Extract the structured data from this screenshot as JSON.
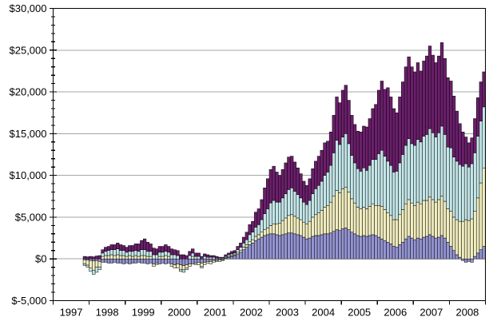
{
  "chart_data": {
    "type": "bar",
    "stacked": true,
    "title": "",
    "xlabel": "",
    "ylabel": "",
    "legend": "none",
    "grid": "horizontal-major-gridlines",
    "x_axis": {
      "tick_labels": [
        "1997",
        "1998",
        "1999",
        "2000",
        "2001",
        "2002",
        "2003",
        "2004",
        "2005",
        "2006",
        "2007",
        "2008"
      ],
      "start_year": 1997,
      "end_year_exclusive": 2009,
      "bar_period": "monthly",
      "first_bar": "1997-11",
      "last_bar": "2008-12"
    },
    "y_axis": {
      "min": -5000,
      "max": 30000,
      "major_step": 5000,
      "minor_step": 1000,
      "tick_labels": [
        "$30,000",
        "$25,000",
        "$20,000",
        "$15,000",
        "$10,000",
        "$5,000",
        "$0",
        "$-5,000"
      ]
    },
    "colors": {
      "axis": "#000000",
      "gridline": "#A6A6A6",
      "bar_outline": "#000000",
      "background": "#FFFFFF"
    },
    "series": [
      {
        "name": "series-1-periwinkle",
        "color": "#9494D3",
        "values": [
          -100,
          -150,
          -200,
          -250,
          -200,
          -300,
          -400,
          -400,
          -500,
          -500,
          -400,
          -500,
          -500,
          -600,
          -500,
          -600,
          -500,
          -500,
          -400,
          -500,
          -500,
          -600,
          -500,
          -600,
          -500,
          -600,
          -500,
          -600,
          -500,
          -600,
          -700,
          -600,
          -700,
          -800,
          -700,
          -600,
          -600,
          -500,
          -400,
          -500,
          -400,
          -300,
          -300,
          -200,
          -200,
          -100,
          -100,
          100,
          200,
          300,
          400,
          600,
          800,
          1100,
          1400,
          1700,
          1900,
          2200,
          2400,
          2600,
          2800,
          2900,
          3000,
          3000,
          2900,
          2800,
          2900,
          3000,
          3100,
          3100,
          3000,
          2900,
          2800,
          2600,
          2400,
          2500,
          2700,
          2800,
          2800,
          2900,
          3000,
          3000,
          3100,
          3300,
          3500,
          3400,
          3600,
          3700,
          3500,
          3200,
          3000,
          2800,
          2700,
          2800,
          2700,
          2800,
          2900,
          2800,
          2600,
          2400,
          2200,
          2000,
          1800,
          1500,
          1400,
          1700,
          2000,
          2400,
          2700,
          2500,
          2300,
          2500,
          2400,
          2600,
          2700,
          2900,
          2700,
          2500,
          2600,
          2800,
          2500,
          2000,
          1500,
          1000,
          500,
          200,
          -200,
          -400,
          -300,
          -400,
          300,
          700,
          1100,
          1500
        ]
      },
      {
        "name": "series-2-pale-yellow",
        "color": "#F0ECBE",
        "values": [
          -500,
          -600,
          -900,
          -1100,
          -800,
          -700,
          300,
          400,
          400,
          500,
          400,
          500,
          400,
          400,
          300,
          400,
          300,
          400,
          300,
          400,
          400,
          300,
          300,
          -300,
          -200,
          300,
          300,
          400,
          300,
          -300,
          -400,
          -500,
          -600,
          -500,
          -400,
          -300,
          300,
          -200,
          -300,
          -400,
          -300,
          -200,
          -300,
          -200,
          -100,
          -200,
          -100,
          100,
          100,
          100,
          100,
          200,
          200,
          300,
          300,
          400,
          400,
          500,
          500,
          600,
          700,
          800,
          1000,
          1200,
          1300,
          1500,
          1700,
          1900,
          2100,
          2200,
          2100,
          2000,
          1900,
          1800,
          1800,
          2000,
          2300,
          2500,
          2700,
          2900,
          3200,
          3400,
          3700,
          4200,
          4700,
          4500,
          4800,
          4900,
          4500,
          4000,
          3700,
          3400,
          3300,
          3400,
          3300,
          3500,
          3700,
          3600,
          3800,
          3900,
          3700,
          3500,
          3400,
          3200,
          3300,
          3600,
          3900,
          4200,
          4400,
          4200,
          4100,
          4300,
          4200,
          4400,
          4300,
          4500,
          4400,
          4300,
          4500,
          4700,
          4400,
          4000,
          4200,
          4000,
          4200,
          4300,
          4500,
          4700,
          4600,
          4800,
          5400,
          6600,
          8000,
          9400
        ]
      },
      {
        "name": "series-3-light-cyan",
        "color": "#C4E6E8",
        "values": [
          -200,
          -250,
          -400,
          -500,
          -600,
          -300,
          400,
          500,
          600,
          600,
          700,
          700,
          600,
          600,
          500,
          500,
          600,
          600,
          600,
          700,
          700,
          600,
          600,
          500,
          500,
          500,
          500,
          500,
          500,
          500,
          500,
          400,
          -200,
          -300,
          -200,
          400,
          400,
          300,
          300,
          -200,
          300,
          200,
          200,
          200,
          100,
          100,
          100,
          100,
          200,
          200,
          200,
          300,
          400,
          500,
          600,
          800,
          900,
          1100,
          1200,
          1500,
          1900,
          2300,
          2700,
          2800,
          2600,
          2500,
          2700,
          2900,
          3100,
          3200,
          3000,
          2800,
          2600,
          2400,
          2300,
          2500,
          2800,
          3100,
          3300,
          3500,
          3800,
          4000,
          4400,
          5200,
          6000,
          5800,
          6200,
          6400,
          5800,
          5200,
          4800,
          4600,
          4500,
          4700,
          4600,
          4900,
          5300,
          5500,
          6200,
          6700,
          6400,
          6200,
          6000,
          5700,
          5800,
          6200,
          6600,
          7000,
          7300,
          7100,
          7200,
          7500,
          7400,
          7700,
          7900,
          8200,
          8000,
          7800,
          8000,
          8400,
          8000,
          7400,
          7600,
          7200,
          7000,
          6800,
          6600,
          6700,
          6400,
          6600,
          7000,
          7400,
          7400,
          7300
        ]
      },
      {
        "name": "series-4-dark-purple",
        "color": "#6B1F6B",
        "values": [
          300,
          250,
          300,
          250,
          350,
          400,
          400,
          500,
          500,
          600,
          600,
          700,
          700,
          600,
          600,
          700,
          700,
          800,
          900,
          1100,
          1300,
          1100,
          900,
          800,
          700,
          700,
          700,
          800,
          700,
          700,
          600,
          600,
          500,
          500,
          400,
          500,
          500,
          400,
          400,
          300,
          300,
          300,
          200,
          200,
          200,
          100,
          100,
          200,
          200,
          300,
          300,
          400,
          500,
          700,
          900,
          1200,
          1300,
          1800,
          1900,
          2400,
          3100,
          3600,
          4000,
          4100,
          3600,
          3200,
          3400,
          3700,
          3900,
          3800,
          3500,
          3200,
          2900,
          2500,
          2300,
          2600,
          3000,
          3300,
          3500,
          3700,
          3900,
          3700,
          4000,
          4500,
          5200,
          5000,
          5600,
          5800,
          5200,
          4800,
          4600,
          4500,
          4700,
          5000,
          5200,
          5600,
          6100,
          6600,
          7600,
          8300,
          8000,
          8800,
          8200,
          7600,
          7000,
          7900,
          8700,
          9400,
          9800,
          9200,
          8800,
          9200,
          8500,
          9000,
          9400,
          9900,
          9300,
          8900,
          9200,
          10000,
          9100,
          8300,
          8000,
          7300,
          6000,
          4900,
          4100,
          3200,
          2900,
          3100,
          4100,
          4600,
          4700,
          4200
        ]
      }
    ]
  }
}
